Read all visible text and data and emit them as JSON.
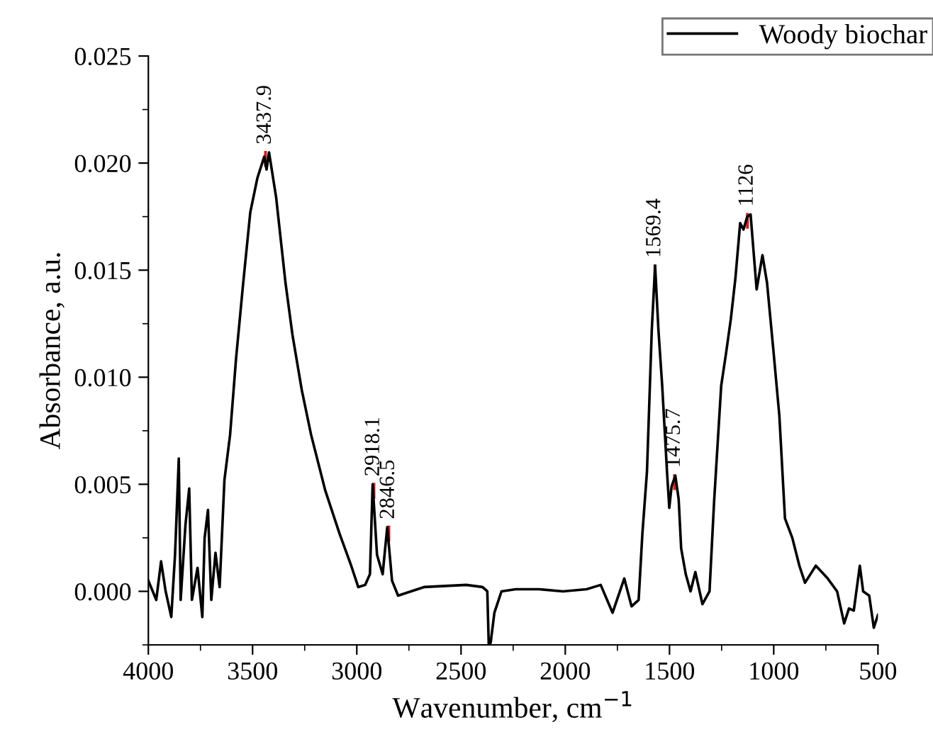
{
  "chart_data": {
    "type": "line",
    "xlabel": "Wavenumber, cm$^{−1}$",
    "ylabel": "Absorbance, a.u.",
    "xlim": [
      4000,
      500
    ],
    "xticks": [
      4000,
      3500,
      3000,
      2500,
      2000,
      1500,
      1000,
      500
    ],
    "ylim": [
      -0.0025,
      0.025
    ],
    "yticks": [
      {
        "value": 0,
        "label": "0.000"
      },
      {
        "value": 0.005,
        "label": "0.005"
      },
      {
        "value": 0.01,
        "label": "0.010"
      },
      {
        "value": 0.015,
        "label": "0.015"
      },
      {
        "value": 0.02,
        "label": "0.020"
      },
      {
        "value": 0.025,
        "label": "0.025"
      }
    ],
    "grid": false,
    "legend": "top right",
    "series": [
      {
        "name": "Woody biochar",
        "color": "#000000",
        "x": [
          4000,
          3962,
          3939,
          3917,
          3890,
          3872,
          3854,
          3845,
          3822,
          3804,
          3791,
          3764,
          3741,
          3730,
          3714,
          3698,
          3678,
          3658,
          3635,
          3608,
          3579,
          3545,
          3511,
          3477,
          3444,
          3433,
          3421,
          3387,
          3342,
          3309,
          3264,
          3219,
          3151,
          3083,
          3027,
          2993,
          2960,
          2937,
          2924,
          2903,
          2876,
          2854,
          2831,
          2802,
          2678,
          2475,
          2397,
          2374,
          2367,
          2358,
          2340,
          2306,
          2238,
          2125,
          2011,
          1898,
          1830,
          1773,
          1717,
          1682,
          1648,
          1630,
          1608,
          1585,
          1569,
          1553,
          1535,
          1512,
          1501,
          1490,
          1472,
          1456,
          1444,
          1422,
          1399,
          1376,
          1342,
          1308,
          1286,
          1252,
          1229,
          1206,
          1184,
          1161,
          1145,
          1127,
          1111,
          1082,
          1054,
          1032,
          1002,
          973,
          946,
          911,
          877,
          850,
          798,
          741,
          696,
          662,
          639,
          616,
          587,
          571,
          542,
          520,
          500
        ],
        "values": [
          0.0005,
          -0.0004,
          0.0014,
          0.0,
          -0.0012,
          0.0017,
          0.0062,
          -0.0004,
          0.0031,
          0.0048,
          -0.0004,
          0.0011,
          -0.0012,
          0.0025,
          0.0038,
          -0.0004,
          0.0018,
          0.0002,
          0.0052,
          0.0073,
          0.0109,
          0.0144,
          0.0177,
          0.0193,
          0.0203,
          0.0197,
          0.0205,
          0.0184,
          0.0144,
          0.012,
          0.0094,
          0.0073,
          0.0047,
          0.0027,
          0.0012,
          0.0002,
          0.0003,
          0.0008,
          0.005,
          0.0017,
          0.0008,
          0.003,
          0.0005,
          -0.0002,
          0.0002,
          0.0003,
          0.0002,
          0.0,
          -0.0025,
          -0.0024,
          -0.001,
          0.0,
          0.0001,
          0.0001,
          0.0,
          0.0001,
          0.0003,
          -0.001,
          0.0006,
          -0.0007,
          -0.0004,
          0.0027,
          0.0056,
          0.0122,
          0.0152,
          0.0122,
          0.0096,
          0.0056,
          0.0039,
          0.0049,
          0.0054,
          0.0043,
          0.002,
          0.0008,
          0.0,
          0.0009,
          -0.0006,
          0.0,
          0.0042,
          0.0096,
          0.0111,
          0.0127,
          0.0146,
          0.0172,
          0.0169,
          0.0175,
          0.0176,
          0.0141,
          0.0157,
          0.0144,
          0.0113,
          0.0082,
          0.0034,
          0.0025,
          0.0012,
          0.0004,
          0.0012,
          0.0006,
          0.0,
          -0.0015,
          -0.0008,
          -0.0009,
          0.0012,
          0.0,
          -0.0002,
          -0.0017,
          -0.0011
        ]
      }
    ],
    "annotations": [
      {
        "text": "3437.9",
        "x": 3437.9,
        "y": 0.0205
      },
      {
        "text": "2918.1",
        "x": 2918.1,
        "y": 0.005
      },
      {
        "text": "2846.5",
        "x": 2846.5,
        "y": 0.003
      },
      {
        "text": "1569.4",
        "x": 1569.4,
        "y": 0.0152
      },
      {
        "text": "1475.7",
        "x": 1475.7,
        "y": 0.0054
      },
      {
        "text": "1126",
        "x": 1126,
        "y": 0.0176
      }
    ]
  }
}
